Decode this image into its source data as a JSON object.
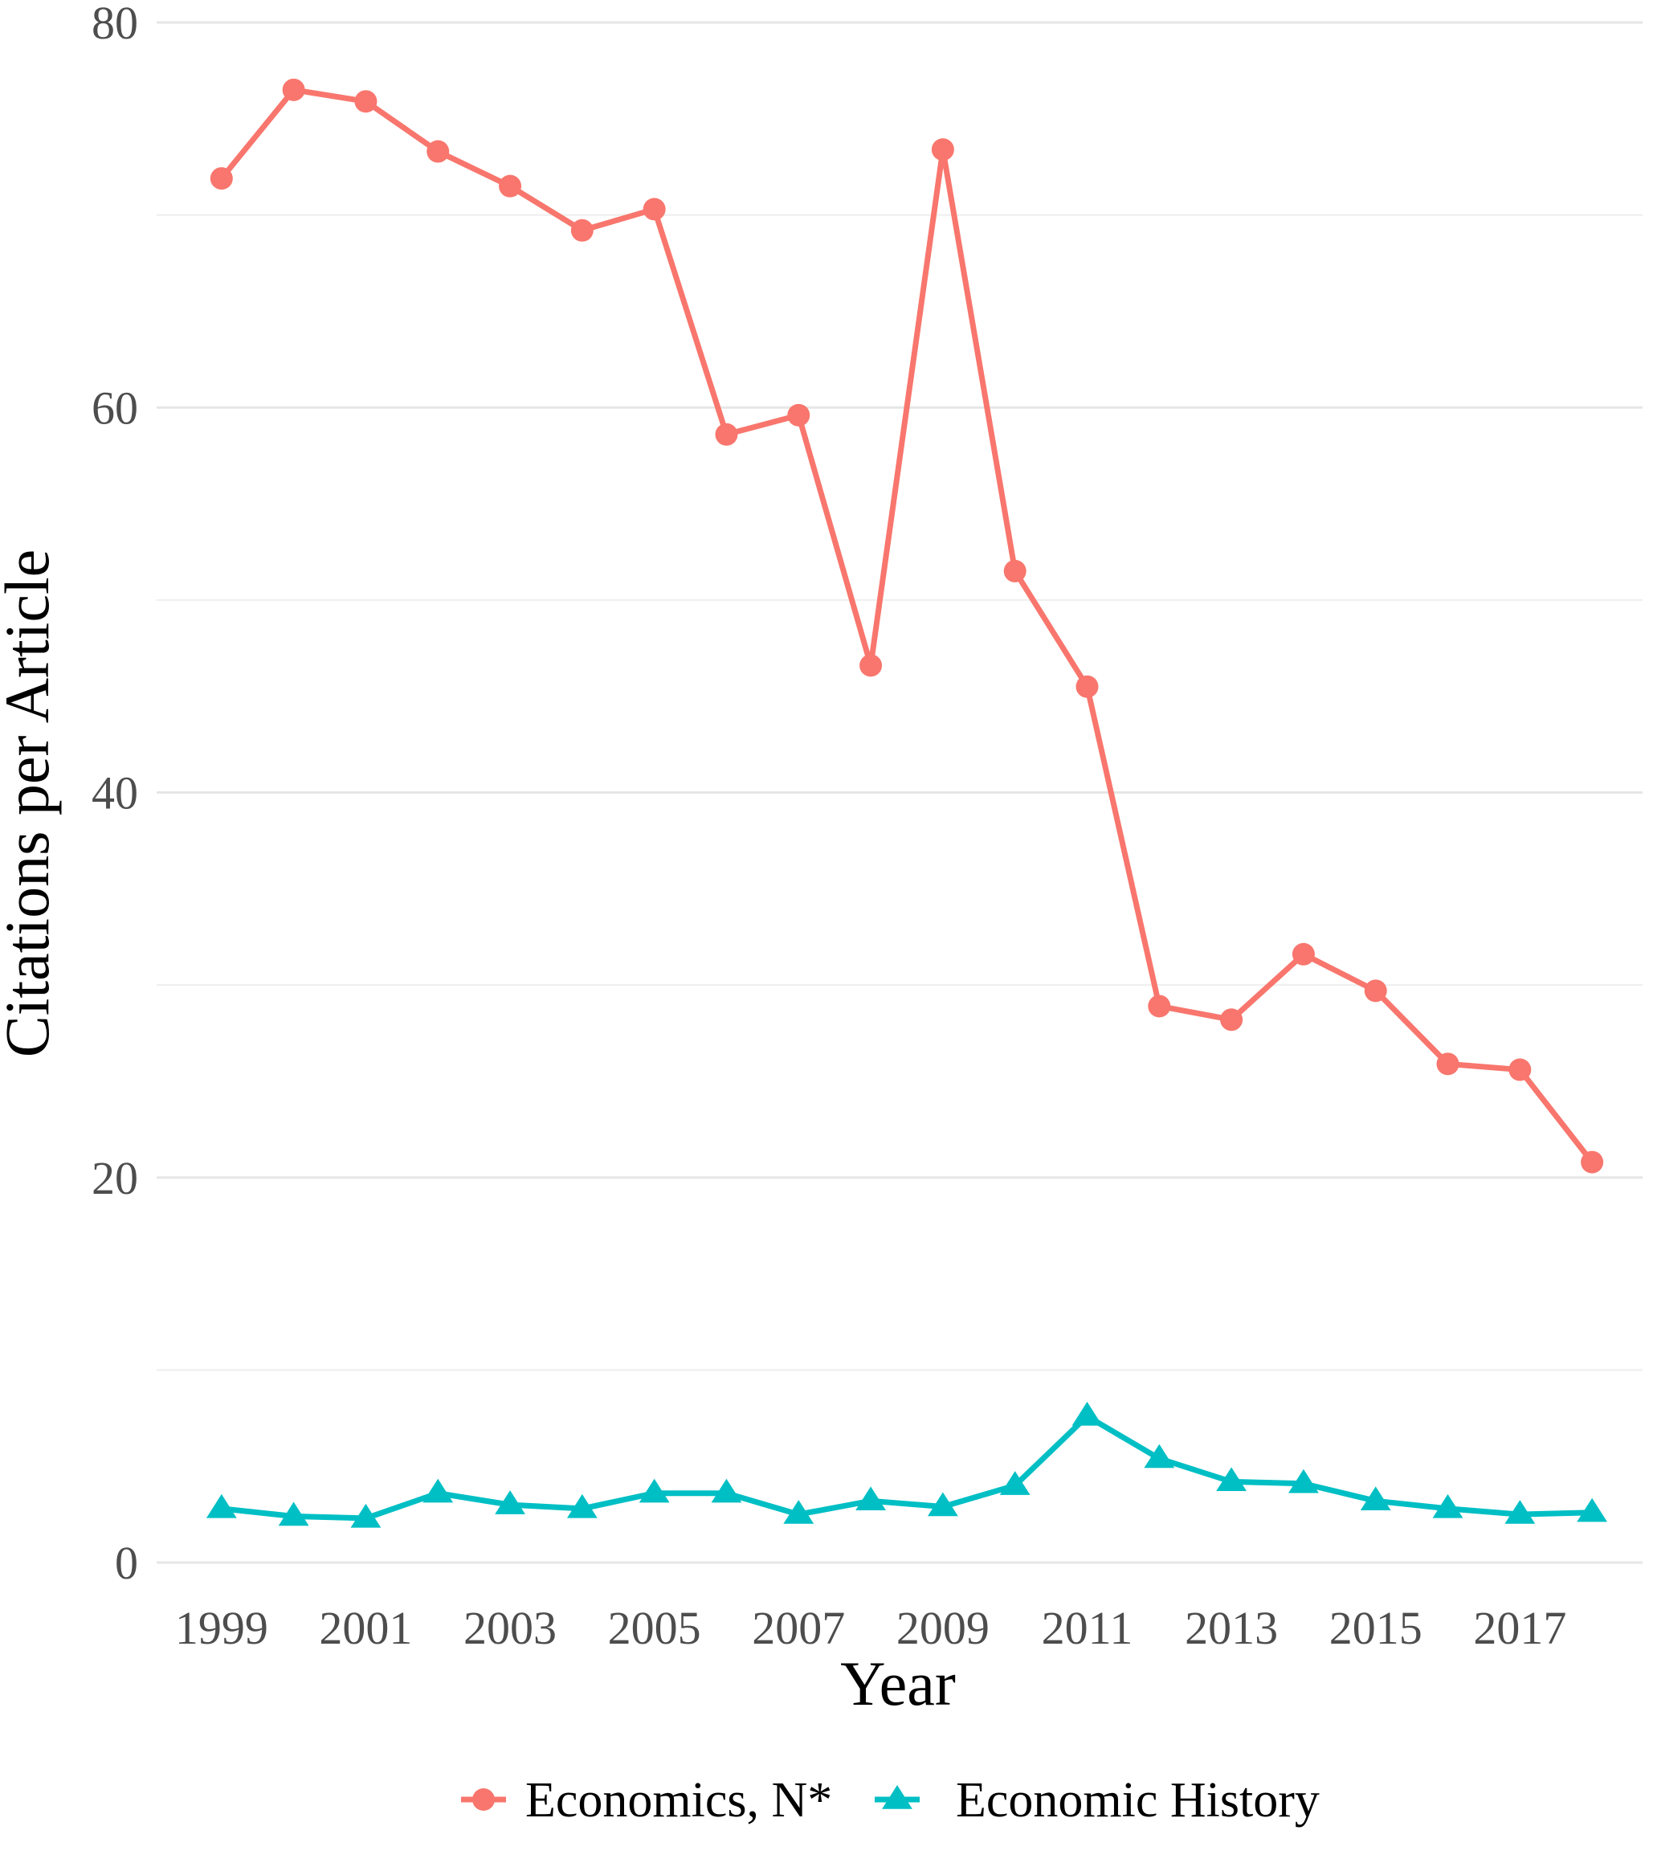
{
  "chart_data": {
    "type": "line",
    "xlabel": "Year",
    "ylabel": "Citations per Article",
    "ylim": [
      0,
      80
    ],
    "xlim": [
      1998.1,
      2018.7
    ],
    "y_ticks": [
      "0",
      "20",
      "40",
      "60",
      "80"
    ],
    "x_ticks": [
      "1999",
      "2001",
      "2003",
      "2005",
      "2007",
      "2009",
      "2011",
      "2013",
      "2015",
      "2017"
    ],
    "y_gridlines": [
      0,
      10,
      20,
      30,
      40,
      50,
      60,
      70,
      80
    ],
    "grid": true,
    "legend_position": "bottom",
    "x": [
      1999,
      2000,
      2001,
      2002,
      2003,
      2004,
      2005,
      2006,
      2007,
      2008,
      2009,
      2010,
      2011,
      2012,
      2013,
      2014,
      2015,
      2016,
      2017,
      2018
    ],
    "series": [
      {
        "name": "Economics, N*",
        "marker": "circle",
        "color": "#F8766D",
        "values": [
          71.9,
          76.5,
          75.9,
          73.3,
          71.5,
          69.2,
          70.3,
          58.6,
          59.6,
          46.6,
          73.4,
          51.5,
          45.5,
          28.9,
          28.2,
          31.6,
          29.7,
          25.9,
          25.6,
          20.8
        ]
      },
      {
        "name": "Economic History",
        "marker": "triangle",
        "color": "#00BFC4",
        "values": [
          2.8,
          2.4,
          2.3,
          3.6,
          3.0,
          2.8,
          3.6,
          3.6,
          2.5,
          3.2,
          2.9,
          4.0,
          7.6,
          5.4,
          4.2,
          4.1,
          3.2,
          2.8,
          2.5,
          2.6
        ]
      }
    ]
  }
}
